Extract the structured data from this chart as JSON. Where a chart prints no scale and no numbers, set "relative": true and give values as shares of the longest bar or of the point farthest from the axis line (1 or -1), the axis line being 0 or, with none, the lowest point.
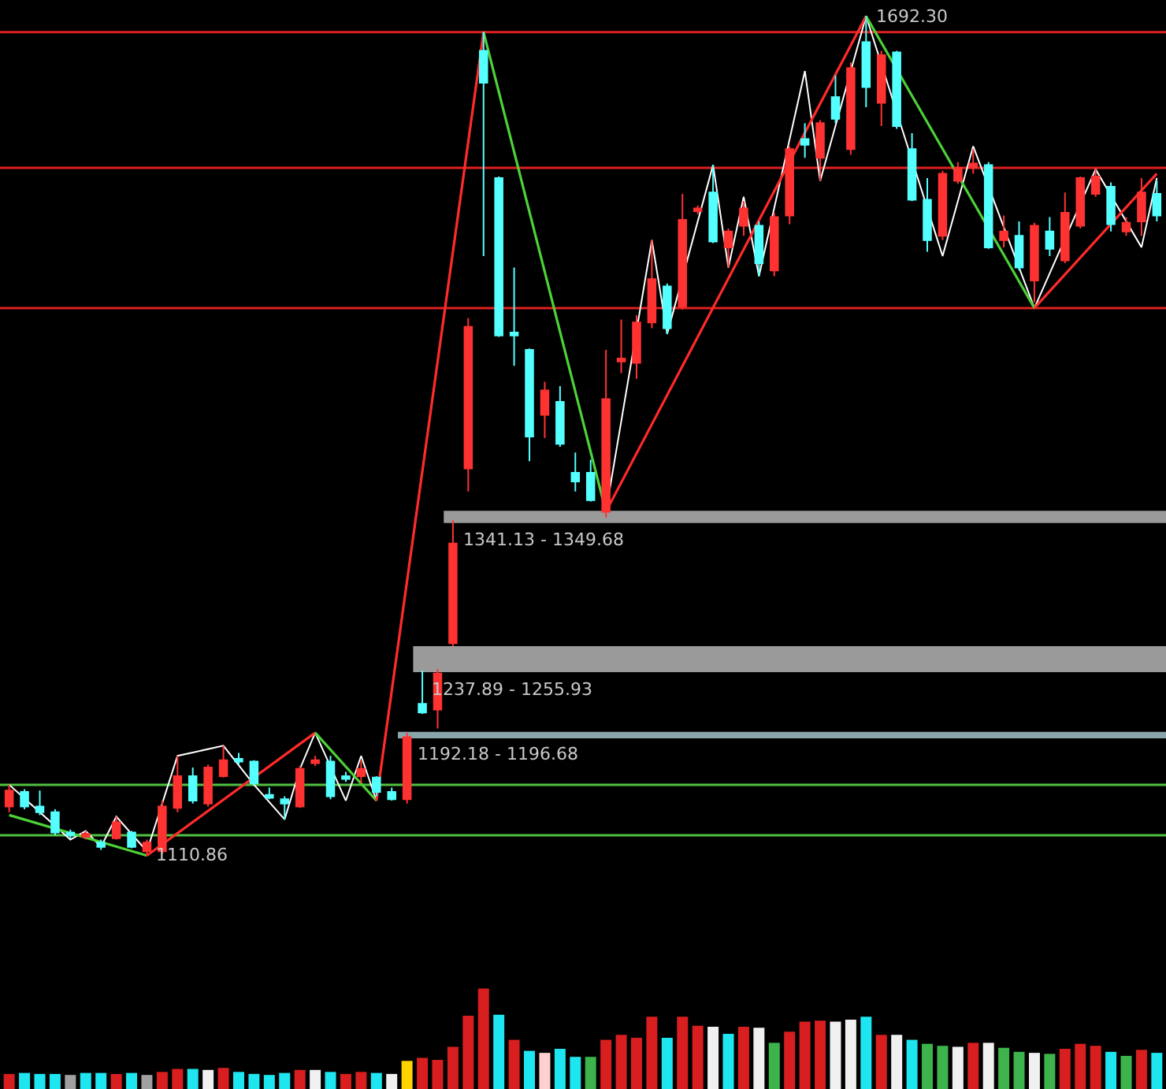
{
  "chart_data": [
    {
      "type": "candlestick",
      "tick_labels": false,
      "categories": [
        null,
        null,
        null,
        null,
        null,
        null,
        null,
        null,
        null,
        null,
        null,
        null,
        null,
        null,
        null,
        null,
        null,
        null,
        null,
        null,
        null,
        null,
        null,
        null,
        null,
        null,
        null,
        null,
        null,
        null,
        null,
        null,
        null,
        null,
        null,
        null,
        null,
        null,
        null,
        null,
        null,
        null,
        null,
        null,
        null,
        null,
        null,
        null,
        null,
        null,
        null,
        null,
        null,
        null,
        null,
        null,
        null,
        null,
        null,
        null,
        null,
        null,
        null,
        null,
        null,
        null,
        null,
        null,
        null,
        null,
        null,
        null,
        null,
        null,
        null,
        null
      ],
      "ohlc": [
        [
          1145,
          1160,
          1141,
          1156
        ],
        [
          1155,
          1157,
          1143,
          1145
        ],
        [
          1145,
          1156,
          1139,
          1141
        ],
        [
          1141,
          1143,
          1125,
          1127
        ],
        [
          1127,
          1129,
          1123,
          1125
        ],
        [
          1124,
          1128,
          1122,
          1126
        ],
        [
          1120,
          1122,
          1115,
          1117
        ],
        [
          1123,
          1138,
          1122,
          1134
        ],
        [
          1127,
          1128,
          1116,
          1117
        ],
        [
          1114,
          1122,
          1110.86,
          1120
        ],
        [
          1114,
          1149,
          1112,
          1145
        ],
        [
          1144,
          1180,
          1141,
          1166
        ],
        [
          1166,
          1172,
          1147,
          1149
        ],
        [
          1147,
          1174,
          1145,
          1172
        ],
        [
          1166,
          1187,
          1165,
          1177
        ],
        [
          1178,
          1182,
          1174,
          1176
        ],
        [
          1176,
          1177,
          1160,
          1161
        ],
        [
          1153,
          1158,
          1150,
          1151
        ],
        [
          1150,
          1152,
          1136,
          1147
        ],
        [
          1145,
          1173,
          1144,
          1171
        ],
        [
          1175,
          1180,
          1173,
          1177
        ],
        [
          1176,
          1180,
          1150,
          1152
        ],
        [
          1166,
          1169,
          1162,
          1164
        ],
        [
          1166,
          1177,
          1161,
          1171
        ],
        [
          1165,
          1166,
          1152,
          1155
        ],
        [
          1155,
          1158,
          1149,
          1150
        ],
        [
          1150,
          1196,
          1147,
          1193
        ],
        [
          1216,
          1239,
          1209,
          1210
        ],
        [
          1212,
          1240,
          1199,
          1237
        ],
        [
          1258,
          1343,
          1256,
          1327
        ],
        [
          1379,
          1483,
          1363,
          1477
        ],
        [
          1668,
          1681,
          1526,
          1646
        ],
        [
          1580,
          1581,
          1470,
          1471
        ],
        [
          1473,
          1518,
          1450,
          1471
        ],
        [
          1461,
          1462,
          1384,
          1401
        ],
        [
          1416,
          1439,
          1400,
          1433
        ],
        [
          1425,
          1436,
          1394,
          1396
        ],
        [
          1376,
          1390,
          1363,
          1370
        ],
        [
          1376,
          1385,
          1356,
          1357
        ],
        [
          1349,
          1461,
          1345,
          1427
        ],
        [
          1453,
          1482,
          1445,
          1455
        ],
        [
          1452,
          1485,
          1441,
          1480
        ],
        [
          1480,
          1537,
          1476,
          1510
        ],
        [
          1505,
          1507,
          1472,
          1476
        ],
        [
          1491,
          1569,
          1489,
          1551
        ],
        [
          1557,
          1561,
          1555,
          1559
        ],
        [
          1570,
          1589,
          1535,
          1536
        ],
        [
          1532,
          1545,
          1518,
          1543
        ],
        [
          1547,
          1564,
          1540,
          1559
        ],
        [
          1547,
          1550,
          1512,
          1521
        ],
        [
          1516,
          1556,
          1512,
          1553
        ],
        [
          1554,
          1602,
          1548,
          1600
        ],
        [
          1607,
          1618,
          1594,
          1603
        ],
        [
          1594,
          1620,
          1578,
          1618
        ],
        [
          1636,
          1651,
          1618,
          1621
        ],
        [
          1600,
          1660,
          1596,
          1656
        ],
        [
          1674,
          1692.3,
          1629,
          1643
        ],
        [
          1632,
          1668,
          1616,
          1665
        ],
        [
          1667,
          1668,
          1614,
          1616
        ],
        [
          1600,
          1611,
          1564,
          1565
        ],
        [
          1565,
          1580,
          1529,
          1537
        ],
        [
          1540,
          1585,
          1537,
          1583
        ],
        [
          1578,
          1591,
          1576,
          1587
        ],
        [
          1587,
          1600,
          1583,
          1590
        ],
        [
          1589,
          1591,
          1531,
          1532
        ],
        [
          1537,
          1554,
          1532,
          1543
        ],
        [
          1540,
          1550,
          1516,
          1518
        ],
        [
          1509,
          1549,
          1494,
          1547
        ],
        [
          1543,
          1553,
          1526,
          1531
        ],
        [
          1523,
          1570,
          1521,
          1556
        ],
        [
          1547,
          1581,
          1545,
          1580
        ],
        [
          1569,
          1586,
          1567,
          1581
        ],
        [
          1574,
          1577,
          1543,
          1548
        ],
        [
          1543,
          1553,
          1540,
          1549
        ],
        [
          1550,
          1580,
          1540,
          1570
        ],
        [
          1569,
          1578,
          1550,
          1554
        ]
      ],
      "colors": [
        "#ff3232",
        "#54ffff",
        "#54ffff",
        "#54ffff",
        "#54ffff",
        "#ff3232",
        "#54ffff",
        "#ff3232",
        "#54ffff",
        "#ff3232",
        "#ff3232",
        "#ff3232",
        "#54ffff",
        "#ff3232",
        "#ff3232",
        "#54ffff",
        "#54ffff",
        "#54ffff",
        "#54ffff",
        "#ff3232",
        "#ff3232",
        "#54ffff",
        "#54ffff",
        "#ff3232",
        "#54ffff",
        "#54ffff",
        "#ff3232",
        "#54ffff",
        "#ff3232",
        "#ff3232",
        "#ff3232",
        "#54ffff",
        "#54ffff",
        "#54ffff",
        "#54ffff",
        "#ff3232",
        "#54ffff",
        "#54ffff",
        "#54ffff",
        "#ff3232",
        "#ff3232",
        "#ff3232",
        "#ff3232",
        "#54ffff",
        "#ff3232",
        "#ff3232",
        "#54ffff",
        "#ff3232",
        "#ff3232",
        "#54ffff",
        "#ff3232",
        "#ff3232",
        "#54ffff",
        "#ff3232",
        "#54ffff",
        "#ff3232",
        "#54ffff",
        "#ff3232",
        "#54ffff",
        "#54ffff",
        "#54ffff",
        "#ff3232",
        "#ff3232",
        "#ff3232",
        "#54ffff",
        "#ff3232",
        "#54ffff",
        "#ff3232",
        "#54ffff",
        "#ff3232",
        "#ff3232",
        "#ff3232",
        "#54ffff",
        "#ff3232",
        "#ff3232",
        "#54ffff"
      ],
      "series": [
        {
          "type": "line",
          "color": "#ffffff",
          "values": [
            1160,
            null,
            null,
            null,
            1122,
            1128,
            1117,
            1138,
            null,
            1114,
            null,
            1180,
            null,
            null,
            1187,
            null,
            1160,
            null,
            1136,
            1171,
            1196,
            null,
            1149,
            1180,
            1149,
            null,
            null,
            null,
            null,
            null,
            null,
            1681,
            null,
            null,
            null,
            null,
            null,
            null,
            null,
            1349,
            null,
            null,
            1537,
            1472,
            null,
            null,
            1589,
            1518,
            1567,
            1512,
            null,
            null,
            1654,
            1578,
            null,
            null,
            1692,
            null,
            null,
            null,
            null,
            1526,
            null,
            1602,
            null,
            null,
            1518,
            1490,
            null,
            null,
            null,
            1586,
            null,
            null,
            1532,
            1580
          ]
        },
        {
          "type": "line",
          "color": "#4cd137",
          "values": [
            1139,
            null,
            null,
            null,
            null,
            null,
            null,
            null,
            null,
            1111,
            null,
            null,
            null,
            null,
            null,
            null,
            null,
            null,
            null,
            null,
            null,
            null,
            null,
            null,
            null,
            null,
            null,
            null,
            null,
            null,
            null,
            null,
            null,
            null,
            null,
            null,
            null,
            null,
            null,
            null,
            null,
            null,
            null,
            null,
            null,
            null,
            null,
            null,
            null,
            null,
            null,
            null,
            null,
            null,
            null,
            null,
            null,
            null,
            null,
            null,
            null,
            null,
            null,
            null,
            null,
            null,
            null,
            null,
            null,
            null,
            null,
            null,
            null,
            null,
            null,
            null
          ]
        },
        {
          "type": "line",
          "color": "#ff2a2a",
          "values": [
            null,
            null,
            null,
            null,
            null,
            null,
            null,
            null,
            null,
            1111,
            null,
            null,
            null,
            null,
            null,
            null,
            null,
            null,
            null,
            null,
            1196,
            null,
            null,
            null,
            null,
            null,
            null,
            null,
            null,
            null,
            null,
            null,
            null,
            null,
            null,
            null,
            null,
            null,
            null,
            null,
            null,
            null,
            null,
            null,
            null,
            null,
            null,
            null,
            null,
            null,
            null,
            null,
            null,
            null,
            null,
            null,
            null,
            null,
            null,
            null,
            null,
            null,
            null,
            null,
            null,
            null,
            null,
            null,
            null,
            null,
            null,
            null,
            null,
            null,
            null,
            null
          ]
        },
        {
          "type": "line",
          "color": "#4cd137",
          "values": [
            null,
            null,
            null,
            null,
            null,
            null,
            null,
            null,
            null,
            null,
            null,
            null,
            null,
            null,
            null,
            null,
            null,
            null,
            null,
            null,
            1196,
            null,
            null,
            null,
            1149,
            null,
            null,
            null,
            null,
            null,
            null,
            null,
            null,
            null,
            null,
            null,
            null,
            null,
            null,
            null,
            null,
            null,
            null,
            null,
            null,
            null,
            null,
            null,
            null,
            null,
            null,
            null,
            null,
            null,
            null,
            null,
            null,
            null,
            null,
            null,
            null,
            null,
            null,
            null,
            null,
            null,
            null,
            null,
            null,
            null,
            null,
            null,
            null,
            null,
            null,
            null
          ]
        },
        {
          "type": "line",
          "color": "#ff2a2a",
          "values": [
            null,
            null,
            null,
            null,
            null,
            null,
            null,
            null,
            null,
            null,
            null,
            null,
            null,
            null,
            null,
            null,
            null,
            null,
            null,
            null,
            null,
            null,
            null,
            null,
            1149,
            null,
            null,
            null,
            null,
            null,
            null,
            1681,
            null,
            null,
            null,
            null,
            null,
            null,
            null,
            null,
            null,
            null,
            null,
            null,
            null,
            null,
            null,
            null,
            null,
            null,
            null,
            null,
            null,
            null,
            null,
            null,
            null,
            null,
            null,
            null,
            null,
            null,
            null,
            null,
            null,
            null,
            null,
            null,
            null,
            null,
            null,
            null,
            null,
            null,
            null,
            null
          ]
        },
        {
          "type": "line",
          "color": "#4cd137",
          "values": [
            null,
            null,
            null,
            null,
            null,
            null,
            null,
            null,
            null,
            null,
            null,
            null,
            null,
            null,
            null,
            null,
            null,
            null,
            null,
            null,
            null,
            null,
            null,
            null,
            null,
            null,
            null,
            null,
            null,
            null,
            null,
            1681,
            null,
            null,
            null,
            null,
            null,
            null,
            null,
            1349,
            null,
            null,
            null,
            null,
            null,
            null,
            null,
            null,
            null,
            null,
            null,
            null,
            null,
            null,
            null,
            null,
            null,
            null,
            null,
            null,
            null,
            null,
            null,
            null,
            null,
            null,
            null,
            null,
            null,
            null,
            null,
            null,
            null,
            null,
            null,
            null
          ]
        },
        {
          "type": "line",
          "color": "#ff2a2a",
          "values": [
            null,
            null,
            null,
            null,
            null,
            null,
            null,
            null,
            null,
            null,
            null,
            null,
            null,
            null,
            null,
            null,
            null,
            null,
            null,
            null,
            null,
            null,
            null,
            null,
            null,
            null,
            null,
            null,
            null,
            null,
            null,
            null,
            null,
            null,
            null,
            null,
            null,
            null,
            null,
            1349,
            null,
            null,
            null,
            null,
            null,
            null,
            null,
            null,
            null,
            null,
            null,
            null,
            null,
            null,
            null,
            null,
            1692,
            null,
            null,
            null,
            null,
            null,
            null,
            null,
            null,
            null,
            null,
            null,
            null,
            null,
            null,
            null,
            null,
            null,
            null,
            null
          ]
        },
        {
          "type": "line",
          "color": "#4cd137",
          "values": [
            null,
            null,
            null,
            null,
            null,
            null,
            null,
            null,
            null,
            null,
            null,
            null,
            null,
            null,
            null,
            null,
            null,
            null,
            null,
            null,
            null,
            null,
            null,
            null,
            null,
            null,
            null,
            null,
            null,
            null,
            null,
            null,
            null,
            null,
            null,
            null,
            null,
            null,
            null,
            null,
            null,
            null,
            null,
            null,
            null,
            null,
            null,
            null,
            null,
            null,
            null,
            null,
            null,
            null,
            null,
            null,
            1692,
            null,
            null,
            null,
            null,
            null,
            null,
            null,
            null,
            null,
            null,
            1490,
            null,
            null,
            null,
            null,
            null,
            null,
            null,
            null
          ]
        },
        {
          "type": "line",
          "color": "#ff2a2a",
          "values": [
            null,
            null,
            null,
            null,
            null,
            null,
            null,
            null,
            null,
            null,
            null,
            null,
            null,
            null,
            null,
            null,
            null,
            null,
            null,
            null,
            null,
            null,
            null,
            null,
            null,
            null,
            null,
            null,
            null,
            null,
            null,
            null,
            null,
            null,
            null,
            null,
            null,
            null,
            null,
            null,
            null,
            null,
            null,
            null,
            null,
            null,
            null,
            null,
            null,
            null,
            null,
            null,
            null,
            null,
            null,
            null,
            null,
            null,
            null,
            null,
            null,
            null,
            null,
            null,
            null,
            null,
            null,
            1490,
            null,
            null,
            null,
            null,
            null,
            null,
            null,
            1583
          ]
        }
      ],
      "bands": [
        {
          "axis": "y",
          "from": 1341.13,
          "to": 1349.68,
          "label": "1341.13 - 1349.68",
          "color": "#9a9a9a"
        },
        {
          "axis": "y",
          "from": 1237.89,
          "to": 1255.93,
          "label": "1237.89 - 1255.93",
          "color": "#9a9a9a"
        },
        {
          "axis": "y",
          "from": 1192.18,
          "to": 1196.68,
          "label": "1192.18 - 1196.68",
          "color": "#8aa4ac"
        }
      ],
      "ref_lines": [
        {
          "axis": "y",
          "value": 1681,
          "color": "#e02020"
        },
        {
          "axis": "y",
          "value": 1587,
          "color": "#e02020"
        },
        {
          "axis": "y",
          "value": 1490,
          "color": "#e02020"
        },
        {
          "axis": "y",
          "value": 1160,
          "color": "#50c040"
        },
        {
          "axis": "y",
          "value": 1125,
          "color": "#50c040"
        }
      ],
      "annotations": [
        "1110.86",
        "1692.30"
      ]
    },
    {
      "type": "bar",
      "relative": true,
      "tick_labels": false,
      "categories": [
        null,
        null,
        null,
        null,
        null,
        null,
        null,
        null,
        null,
        null,
        null,
        null,
        null,
        null,
        null,
        null,
        null,
        null,
        null,
        null,
        null,
        null,
        null,
        null,
        null,
        null,
        null,
        null,
        null,
        null,
        null,
        null,
        null,
        null,
        null,
        null,
        null,
        null,
        null,
        null,
        null,
        null,
        null,
        null,
        null,
        null,
        null,
        null,
        null,
        null,
        null,
        null,
        null,
        null,
        null,
        null,
        null,
        null,
        null,
        null,
        null,
        null,
        null,
        null,
        null,
        null,
        null,
        null,
        null,
        null,
        null,
        null,
        null,
        null,
        null,
        null
      ],
      "values": [
        0.15,
        0.16,
        0.15,
        0.15,
        0.14,
        0.16,
        0.16,
        0.15,
        0.16,
        0.14,
        0.17,
        0.2,
        0.2,
        0.19,
        0.21,
        0.17,
        0.15,
        0.14,
        0.16,
        0.19,
        0.19,
        0.17,
        0.15,
        0.17,
        0.16,
        0.15,
        0.28,
        0.31,
        0.29,
        0.42,
        0.73,
        1,
        0.74,
        0.49,
        0.38,
        0.36,
        0.4,
        0.32,
        0.32,
        0.49,
        0.54,
        0.51,
        0.72,
        0.51,
        0.72,
        0.63,
        0.62,
        0.55,
        0.62,
        0.61,
        0.46,
        0.57,
        0.67,
        0.68,
        0.67,
        0.69,
        0.72,
        0.54,
        0.54,
        0.49,
        0.45,
        0.43,
        0.42,
        0.46,
        0.46,
        0.41,
        0.37,
        0.36,
        0.35,
        0.4,
        0.45,
        0.43,
        0.37,
        0.33,
        0.39,
        0.36
      ],
      "colors": [
        "#d81e1e",
        "#1ee6f0",
        "#1ee6f0",
        "#1ee6f0",
        "#a0a0a0",
        "#1ee6f0",
        "#1ee6f0",
        "#d81e1e",
        "#1ee6f0",
        "#a0a0a0",
        "#d81e1e",
        "#d81e1e",
        "#1ee6f0",
        "#f0f0f0",
        "#d81e1e",
        "#1ee6f0",
        "#1ee6f0",
        "#1ee6f0",
        "#1ee6f0",
        "#d81e1e",
        "#f0f0f0",
        "#1ee6f0",
        "#d81e1e",
        "#d81e1e",
        "#1ee6f0",
        "#f0f0f0",
        "#ffd400",
        "#d81e1e",
        "#d81e1e",
        "#d81e1e",
        "#d81e1e",
        "#d81e1e",
        "#1ee6f0",
        "#d81e1e",
        "#1ee6f0",
        "#ffd0d0",
        "#1ee6f0",
        "#1ee6f0",
        "#3cb44b",
        "#d81e1e",
        "#d81e1e",
        "#d81e1e",
        "#d81e1e",
        "#1ee6f0",
        "#d81e1e",
        "#d81e1e",
        "#f0f0f0",
        "#1ee6f0",
        "#d81e1e",
        "#f0f0f0",
        "#3cb44b",
        "#d81e1e",
        "#d81e1e",
        "#d81e1e",
        "#f0f0f0",
        "#f0f0f0",
        "#1ee6f0",
        "#d81e1e",
        "#f0f0f0",
        "#1ee6f0",
        "#3cb44b",
        "#3cb44b",
        "#f0f0f0",
        "#d81e1e",
        "#f0f0f0",
        "#3cb44b",
        "#3cb44b",
        "#f0f0f0",
        "#3cb44b",
        "#d81e1e",
        "#d81e1e",
        "#d81e1e",
        "#1ee6f0",
        "#3cb44b",
        "#d81e1e",
        "#1ee6f0"
      ]
    }
  ]
}
